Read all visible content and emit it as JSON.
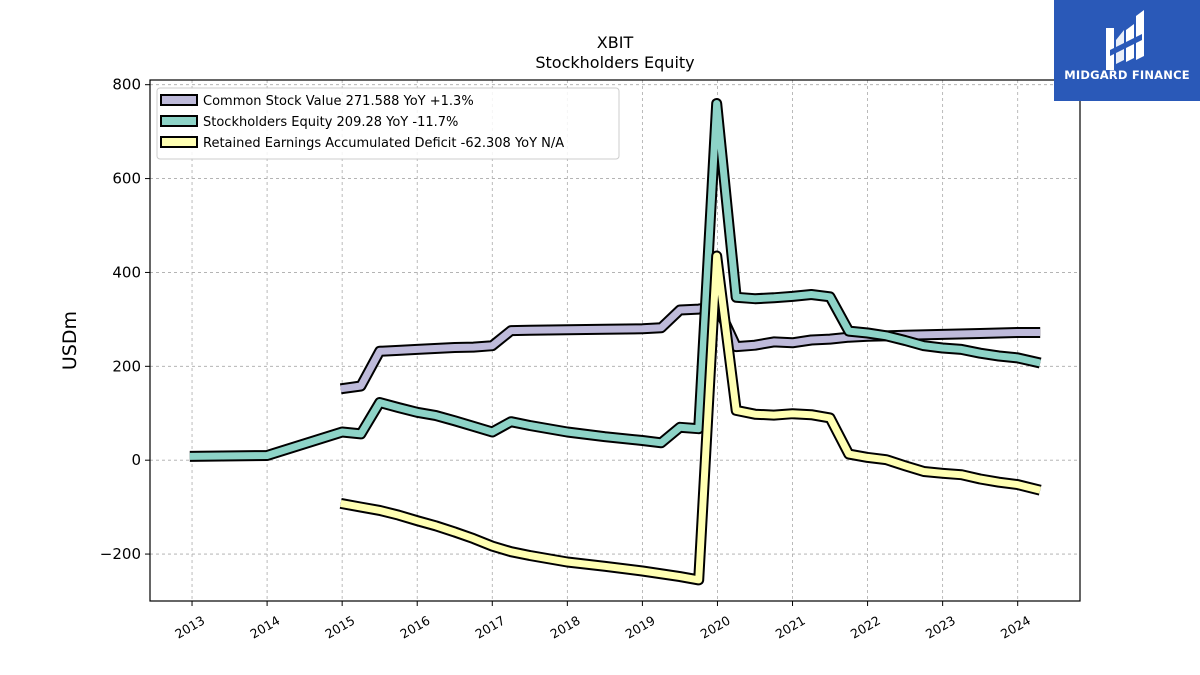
{
  "chart_data": {
    "type": "line",
    "title": "XBIT",
    "subtitle": "Stockholders  Equity",
    "xlabel": "",
    "ylabel": "USDm",
    "ylim": [
      -300,
      810
    ],
    "xlim": [
      2012.44,
      2024.83
    ],
    "yticks": [
      -200,
      0,
      200,
      400,
      600,
      800
    ],
    "yticklabels": [
      "−200",
      "0",
      "200",
      "400",
      "600",
      "800"
    ],
    "xticks": [
      2013,
      2014,
      2015,
      2016,
      2017,
      2018,
      2019,
      2020,
      2021,
      2022,
      2023,
      2024
    ],
    "xticklabels": [
      "2013",
      "2014",
      "2015",
      "2016",
      "2017",
      "2018",
      "2019",
      "2020",
      "2021",
      "2022",
      "2023",
      "2024"
    ],
    "grid": true,
    "legend_position": "top-left",
    "series": [
      {
        "name": "Common Stock Value  271.588 YoY +1.3%",
        "color": "#bebada",
        "points": [
          [
            2014.98,
            152
          ],
          [
            2015.25,
            158
          ],
          [
            2015.5,
            232
          ],
          [
            2015.75,
            234
          ],
          [
            2016.0,
            236
          ],
          [
            2016.5,
            240
          ],
          [
            2016.75,
            241
          ],
          [
            2017.0,
            244
          ],
          [
            2017.25,
            276
          ],
          [
            2017.5,
            277
          ],
          [
            2018.0,
            278
          ],
          [
            2018.5,
            279
          ],
          [
            2019.0,
            280
          ],
          [
            2019.25,
            282
          ],
          [
            2019.5,
            320
          ],
          [
            2019.75,
            322
          ],
          [
            2020.0,
            328
          ],
          [
            2020.25,
            242
          ],
          [
            2020.5,
            245
          ],
          [
            2020.75,
            252
          ],
          [
            2021.0,
            250
          ],
          [
            2021.25,
            256
          ],
          [
            2021.5,
            258
          ],
          [
            2021.75,
            262
          ],
          [
            2022.0,
            264
          ],
          [
            2022.5,
            266
          ],
          [
            2023.0,
            268
          ],
          [
            2023.5,
            270
          ],
          [
            2024.0,
            272
          ],
          [
            2024.3,
            272
          ]
        ]
      },
      {
        "name": "Stockholders Equity  209.28 YoY -11.7%",
        "color": "#8dd3c7",
        "points": [
          [
            2012.97,
            8
          ],
          [
            2014.0,
            10
          ],
          [
            2015.0,
            60
          ],
          [
            2015.25,
            56
          ],
          [
            2015.5,
            123
          ],
          [
            2015.75,
            112
          ],
          [
            2016.0,
            102
          ],
          [
            2016.25,
            95
          ],
          [
            2016.5,
            84
          ],
          [
            2016.75,
            72
          ],
          [
            2017.0,
            60
          ],
          [
            2017.25,
            82
          ],
          [
            2017.5,
            74
          ],
          [
            2018.0,
            60
          ],
          [
            2018.5,
            50
          ],
          [
            2019.0,
            42
          ],
          [
            2019.25,
            37
          ],
          [
            2019.5,
            70
          ],
          [
            2019.75,
            67
          ],
          [
            2019.99,
            760
          ],
          [
            2020.25,
            347
          ],
          [
            2020.5,
            344
          ],
          [
            2020.75,
            346
          ],
          [
            2021.0,
            349
          ],
          [
            2021.25,
            353
          ],
          [
            2021.5,
            348
          ],
          [
            2021.75,
            275
          ],
          [
            2022.0,
            271
          ],
          [
            2022.25,
            265
          ],
          [
            2022.5,
            255
          ],
          [
            2022.75,
            244
          ],
          [
            2023.0,
            239
          ],
          [
            2023.25,
            236
          ],
          [
            2023.5,
            228
          ],
          [
            2023.75,
            222
          ],
          [
            2024.0,
            218
          ],
          [
            2024.3,
            207
          ]
        ]
      },
      {
        "name": "Retained Earnings Accumulated Deficit  -62.308 YoY N/A",
        "color": "#ffffb3",
        "points": [
          [
            2014.98,
            -92
          ],
          [
            2015.25,
            -100
          ],
          [
            2015.5,
            -107
          ],
          [
            2015.75,
            -117
          ],
          [
            2016.0,
            -129
          ],
          [
            2016.25,
            -140
          ],
          [
            2016.5,
            -153
          ],
          [
            2016.75,
            -167
          ],
          [
            2017.0,
            -183
          ],
          [
            2017.25,
            -195
          ],
          [
            2017.5,
            -203
          ],
          [
            2018.0,
            -217
          ],
          [
            2018.5,
            -226
          ],
          [
            2019.0,
            -236
          ],
          [
            2019.5,
            -248
          ],
          [
            2019.75,
            -255
          ],
          [
            2019.99,
            435
          ],
          [
            2020.25,
            106
          ],
          [
            2020.5,
            98
          ],
          [
            2020.75,
            96
          ],
          [
            2021.0,
            99
          ],
          [
            2021.25,
            97
          ],
          [
            2021.5,
            90
          ],
          [
            2021.75,
            13
          ],
          [
            2022.0,
            6
          ],
          [
            2022.25,
            1
          ],
          [
            2022.5,
            -12
          ],
          [
            2022.75,
            -24
          ],
          [
            2023.0,
            -28
          ],
          [
            2023.25,
            -31
          ],
          [
            2023.5,
            -40
          ],
          [
            2023.75,
            -47
          ],
          [
            2024.0,
            -52
          ],
          [
            2024.3,
            -64
          ]
        ]
      }
    ]
  },
  "logo": {
    "text": "MIDGARD FINANCE",
    "color": "#2a59b8"
  }
}
